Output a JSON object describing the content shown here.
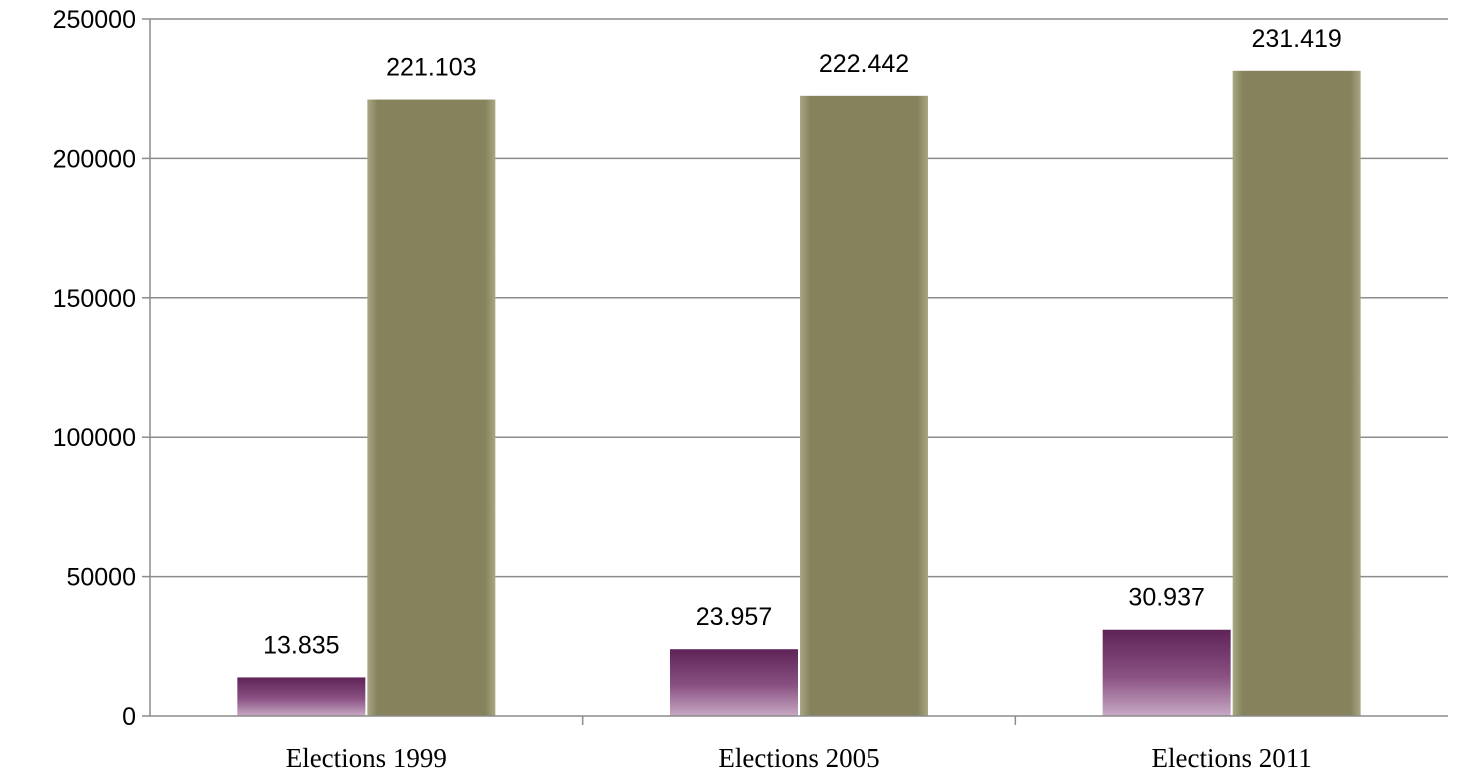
{
  "chart_data": {
    "type": "bar",
    "categories": [
      "Elections 1999",
      "Elections 2005",
      "Elections 2011"
    ],
    "series": [
      {
        "values": [
          13835,
          23957,
          30937
        ],
        "data_labels": [
          "13.835",
          "23.957",
          "30.937"
        ],
        "color": "#6b2d63"
      },
      {
        "values": [
          221103,
          222442,
          231419
        ],
        "data_labels": [
          "221.103",
          "222.442",
          "231.419"
        ],
        "color": "#85825c"
      }
    ],
    "y_ticks": [
      "0",
      "50000",
      "100000",
      "150000",
      "200000",
      "250000"
    ],
    "ylim": [
      0,
      250000
    ],
    "grid": true,
    "legend": "none",
    "title": "",
    "xlabel": "",
    "ylabel": ""
  }
}
